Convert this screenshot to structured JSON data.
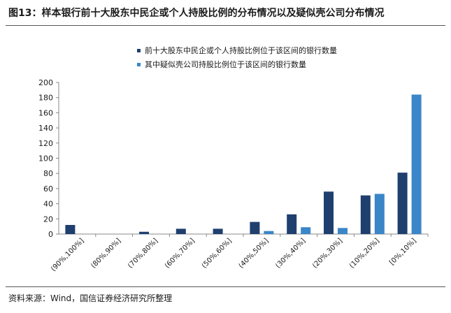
{
  "figure": {
    "title": "图13：样本银行前十大股东中民企或个人持股比例的分布情况以及疑似壳公司分布情况",
    "source": "资料来源：Wind，国信证券经济研究所整理"
  },
  "colors": {
    "series1": "#1f3f6e",
    "series2": "#3a86c8",
    "axis": "#888888"
  },
  "chart_data": {
    "type": "bar",
    "title": "",
    "xlabel": "",
    "ylabel": "",
    "ylim": [
      0,
      200
    ],
    "yticks": [
      0,
      20,
      40,
      60,
      80,
      100,
      120,
      140,
      160,
      180,
      200
    ],
    "grid": false,
    "legend_position": "top",
    "categories": [
      "(90%,100%]",
      "(80%,90%]",
      "(70%,80%]",
      "(60%,70%]",
      "(50%,60%]",
      "(40%,50%]",
      "(30%,40%]",
      "(20%,30%]",
      "(10%,20%]",
      "[0%,10%]"
    ],
    "series": [
      {
        "name": "前十大股东中民企或个人持股比例位于该区间的银行数量",
        "values": [
          12,
          0,
          3,
          7,
          7,
          16,
          26,
          56,
          51,
          81
        ]
      },
      {
        "name": "其中疑似壳公司持股比例位于该区间的银行数量",
        "values": [
          0,
          0,
          0,
          0,
          0,
          4,
          9,
          8,
          53,
          184
        ]
      }
    ]
  }
}
